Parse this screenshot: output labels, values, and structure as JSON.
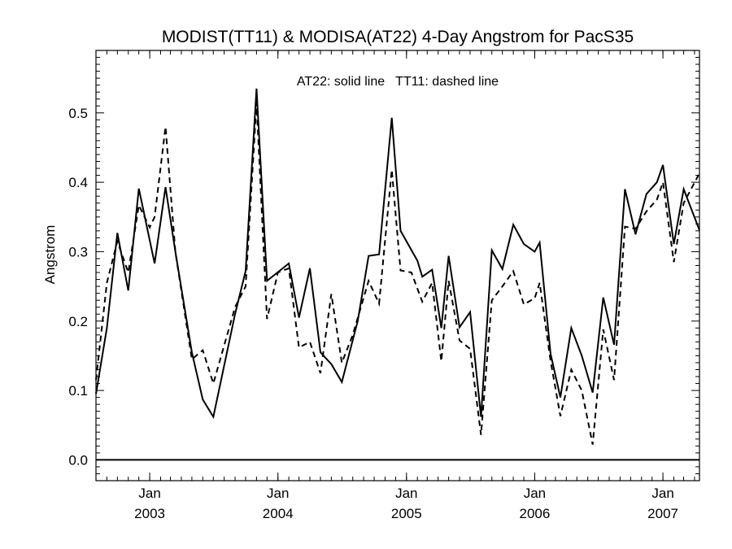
{
  "chart_data": {
    "type": "line",
    "title": "MODIST(TT11) & MODISA(AT22) 4-Day Angstrom for PacS35",
    "annotation": "AT22: solid line   TT11: dashed line",
    "ylabel": "Angstrom",
    "xlabel": "",
    "xlim": [
      "2002-08-01",
      "2007-04-15"
    ],
    "ylim": [
      -0.03,
      0.59
    ],
    "y_ticks": [
      "0.0",
      "0.1",
      "0.2",
      "0.3",
      "0.4",
      "0.5"
    ],
    "x_ticks": [
      {
        "date": "2003-01-01",
        "month": "Jan",
        "year": "2003"
      },
      {
        "date": "2004-01-01",
        "month": "Jan",
        "year": "2004"
      },
      {
        "date": "2005-01-01",
        "month": "Jan",
        "year": "2005"
      },
      {
        "date": "2006-01-01",
        "month": "Jan",
        "year": "2006"
      },
      {
        "date": "2007-01-01",
        "month": "Jan",
        "year": "2007"
      }
    ],
    "reference_line": 0.0,
    "grid": false,
    "series": [
      {
        "name": "AT22",
        "style": "solid",
        "color": "#000000",
        "points": [
          [
            "2002-08-01",
            0.095
          ],
          [
            "2002-09-01",
            0.19
          ],
          [
            "2002-10-01",
            0.327
          ],
          [
            "2002-11-01",
            0.244
          ],
          [
            "2002-12-01",
            0.391
          ],
          [
            "2003-01-15",
            0.283
          ],
          [
            "2003-02-15",
            0.393
          ],
          [
            "2003-03-15",
            0.3
          ],
          [
            "2003-05-01",
            0.155
          ],
          [
            "2003-06-01",
            0.087
          ],
          [
            "2003-07-01",
            0.062
          ],
          [
            "2003-09-01",
            0.21
          ],
          [
            "2003-10-01",
            0.272
          ],
          [
            "2003-11-01",
            0.535
          ],
          [
            "2003-12-01",
            0.258
          ],
          [
            "2004-02-01",
            0.283
          ],
          [
            "2004-03-01",
            0.205
          ],
          [
            "2004-04-01",
            0.276
          ],
          [
            "2004-05-01",
            0.155
          ],
          [
            "2004-06-01",
            0.138
          ],
          [
            "2004-07-01",
            0.112
          ],
          [
            "2004-08-15",
            0.2
          ],
          [
            "2004-09-15",
            0.294
          ],
          [
            "2004-10-15",
            0.296
          ],
          [
            "2004-11-20",
            0.493
          ],
          [
            "2004-12-15",
            0.33
          ],
          [
            "2005-02-01",
            0.287
          ],
          [
            "2005-02-15",
            0.264
          ],
          [
            "2005-03-15",
            0.274
          ],
          [
            "2005-04-10",
            0.19
          ],
          [
            "2005-05-01",
            0.294
          ],
          [
            "2005-06-01",
            0.191
          ],
          [
            "2005-07-01",
            0.213
          ],
          [
            "2005-08-01",
            0.062
          ],
          [
            "2005-09-01",
            0.302
          ],
          [
            "2005-10-01",
            0.275
          ],
          [
            "2005-11-01",
            0.339
          ],
          [
            "2005-12-01",
            0.311
          ],
          [
            "2006-01-01",
            0.3
          ],
          [
            "2006-01-15",
            0.313
          ],
          [
            "2006-02-15",
            0.153
          ],
          [
            "2006-03-15",
            0.09
          ],
          [
            "2006-04-15",
            0.19
          ],
          [
            "2006-05-15",
            0.15
          ],
          [
            "2006-06-15",
            0.097
          ],
          [
            "2006-07-15",
            0.234
          ],
          [
            "2006-08-15",
            0.166
          ],
          [
            "2006-09-15",
            0.39
          ],
          [
            "2006-10-15",
            0.325
          ],
          [
            "2006-11-15",
            0.383
          ],
          [
            "2006-12-15",
            0.4
          ],
          [
            "2007-01-01",
            0.425
          ],
          [
            "2007-02-01",
            0.311
          ],
          [
            "2007-03-01",
            0.39
          ],
          [
            "2007-04-15",
            0.331
          ]
        ]
      },
      {
        "name": "TT11",
        "style": "dashed",
        "color": "#000000",
        "points": [
          [
            "2002-08-01",
            0.115
          ],
          [
            "2002-09-01",
            0.255
          ],
          [
            "2002-10-01",
            0.315
          ],
          [
            "2002-11-01",
            0.27
          ],
          [
            "2002-12-01",
            0.367
          ],
          [
            "2003-01-01",
            0.335
          ],
          [
            "2003-01-15",
            0.35
          ],
          [
            "2003-02-15",
            0.48
          ],
          [
            "2003-03-15",
            0.3
          ],
          [
            "2003-05-01",
            0.145
          ],
          [
            "2003-06-01",
            0.158
          ],
          [
            "2003-07-01",
            0.11
          ],
          [
            "2003-09-01",
            0.22
          ],
          [
            "2003-10-01",
            0.25
          ],
          [
            "2003-11-01",
            0.515
          ],
          [
            "2003-12-01",
            0.203
          ],
          [
            "2004-01-01",
            0.27
          ],
          [
            "2004-02-01",
            0.276
          ],
          [
            "2004-03-01",
            0.162
          ],
          [
            "2004-04-01",
            0.17
          ],
          [
            "2004-05-01",
            0.125
          ],
          [
            "2004-06-01",
            0.239
          ],
          [
            "2004-07-01",
            0.14
          ],
          [
            "2004-08-01",
            0.18
          ],
          [
            "2004-09-15",
            0.258
          ],
          [
            "2004-10-15",
            0.225
          ],
          [
            "2004-11-20",
            0.418
          ],
          [
            "2004-12-15",
            0.273
          ],
          [
            "2005-01-15",
            0.27
          ],
          [
            "2005-02-15",
            0.228
          ],
          [
            "2005-03-15",
            0.255
          ],
          [
            "2005-04-10",
            0.142
          ],
          [
            "2005-05-01",
            0.258
          ],
          [
            "2005-06-01",
            0.172
          ],
          [
            "2005-07-01",
            0.16
          ],
          [
            "2005-08-01",
            0.036
          ],
          [
            "2005-09-01",
            0.23
          ],
          [
            "2005-10-01",
            0.25
          ],
          [
            "2005-11-01",
            0.272
          ],
          [
            "2005-12-01",
            0.224
          ],
          [
            "2006-01-01",
            0.233
          ],
          [
            "2006-01-15",
            0.255
          ],
          [
            "2006-02-15",
            0.143
          ],
          [
            "2006-03-15",
            0.063
          ],
          [
            "2006-04-15",
            0.13
          ],
          [
            "2006-05-15",
            0.1
          ],
          [
            "2006-06-15",
            0.022
          ],
          [
            "2006-07-15",
            0.188
          ],
          [
            "2006-08-15",
            0.115
          ],
          [
            "2006-09-15",
            0.336
          ],
          [
            "2006-10-15",
            0.333
          ],
          [
            "2006-11-15",
            0.358
          ],
          [
            "2006-12-15",
            0.375
          ],
          [
            "2007-01-01",
            0.4
          ],
          [
            "2007-02-01",
            0.285
          ],
          [
            "2007-03-01",
            0.37
          ],
          [
            "2007-04-15",
            0.413
          ]
        ]
      }
    ]
  }
}
